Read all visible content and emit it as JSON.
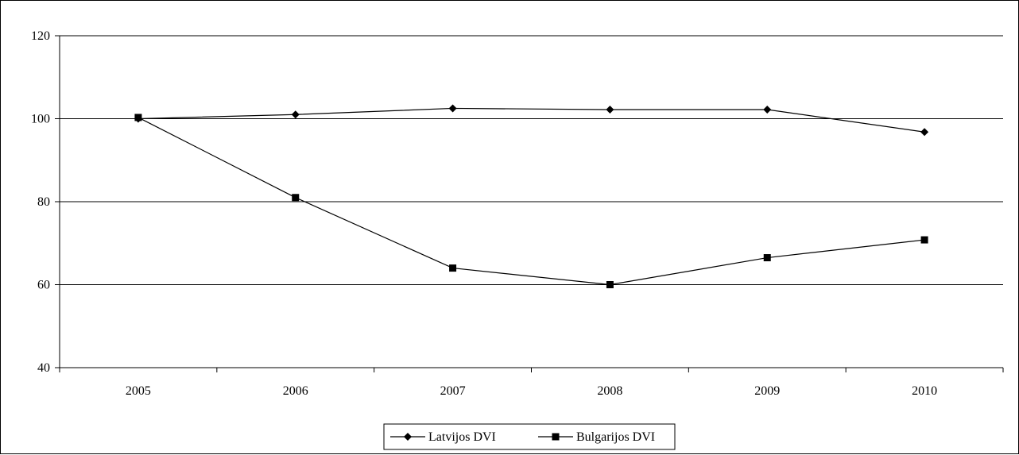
{
  "chart_data": {
    "type": "line",
    "title": "",
    "xlabel": "",
    "ylabel": "",
    "categories": [
      "2005",
      "2006",
      "2007",
      "2008",
      "2009",
      "2010"
    ],
    "ylim": [
      40,
      120
    ],
    "yticks": [
      40,
      60,
      80,
      100,
      120
    ],
    "grid": true,
    "legend_position": "bottom",
    "series": [
      {
        "name": "Latvijos DVI",
        "values": [
          100,
          101,
          102.5,
          102.2,
          102.2,
          96.8
        ],
        "marker": "diamond",
        "color": "#000000"
      },
      {
        "name": "Bulgarijos DVI",
        "values": [
          100.3,
          81,
          64,
          60,
          66.5,
          70.8
        ],
        "marker": "square",
        "color": "#000000"
      }
    ]
  }
}
